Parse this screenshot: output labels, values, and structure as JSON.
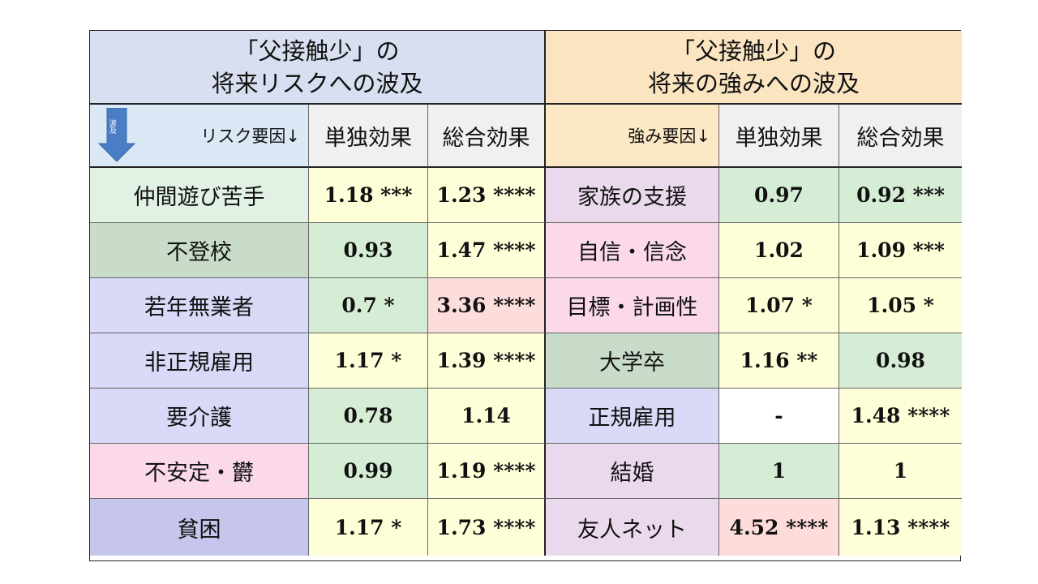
{
  "headers": {
    "left": {
      "line1": "「父接触少」の",
      "line2": "将来リスクへの波及"
    },
    "right": {
      "line1": "「父接触少」の",
      "line2": "将来の強みへの波及"
    }
  },
  "columns": {
    "arrow_label": "波及",
    "risk_factor": "リスク要因↓",
    "single_effect_left": "単独効果",
    "total_effect_left": "総合効果",
    "strength_factor": "強み要因↓",
    "single_effect_right": "単独効果",
    "total_effect_right": "総合効果"
  },
  "colors": {
    "header_left": "#d8dff0",
    "header_right": "#fbe5c1",
    "arrow": "#4a7ec4",
    "white": "#ffffff",
    "yellow": "#fefed8",
    "green": "#d4edd4",
    "pink": "#fddcdc",
    "mint": "#e1f1e3",
    "sage": "#c9dbc9",
    "lavender": "#d9d9f8",
    "violet": "#c6c6ec",
    "rose": "#fbd9ea",
    "mauve": "#ead9ec"
  },
  "rows": [
    {
      "risk": {
        "label": "仲間遊び苦手",
        "color": "mint"
      },
      "risk_single": {
        "value": "1.18 ***",
        "color": "yellow"
      },
      "risk_total": {
        "value": "1.23 ****",
        "color": "yellow"
      },
      "strength": {
        "label": "家族の支援",
        "color": "mauve"
      },
      "strength_single": {
        "value": "0.97",
        "color": "green"
      },
      "strength_total": {
        "value": "0.92 ***",
        "color": "green"
      }
    },
    {
      "risk": {
        "label": "不登校",
        "color": "sage"
      },
      "risk_single": {
        "value": "0.93",
        "color": "green"
      },
      "risk_total": {
        "value": "1.47 ****",
        "color": "yellow"
      },
      "strength": {
        "label": "自信・信念",
        "color": "rose"
      },
      "strength_single": {
        "value": "1.02",
        "color": "yellow"
      },
      "strength_total": {
        "value": "1.09 ***",
        "color": "yellow"
      }
    },
    {
      "risk": {
        "label": "若年無業者",
        "color": "lavender"
      },
      "risk_single": {
        "value": "0.7 *",
        "color": "green"
      },
      "risk_total": {
        "value": "3.36 ****",
        "color": "pink"
      },
      "strength": {
        "label": "目標・計画性",
        "color": "rose"
      },
      "strength_single": {
        "value": "1.07 *",
        "color": "yellow"
      },
      "strength_total": {
        "value": "1.05 *",
        "color": "yellow"
      }
    },
    {
      "risk": {
        "label": "非正規雇用",
        "color": "lavender"
      },
      "risk_single": {
        "value": "1.17 *",
        "color": "yellow"
      },
      "risk_total": {
        "value": "1.39 ****",
        "color": "yellow"
      },
      "strength": {
        "label": "大学卒",
        "color": "sage"
      },
      "strength_single": {
        "value": "1.16 **",
        "color": "yellow"
      },
      "strength_total": {
        "value": "0.98",
        "color": "green"
      }
    },
    {
      "risk": {
        "label": "要介護",
        "color": "lavender"
      },
      "risk_single": {
        "value": "0.78",
        "color": "green"
      },
      "risk_total": {
        "value": "1.14",
        "color": "yellow"
      },
      "strength": {
        "label": "正規雇用",
        "color": "lavender"
      },
      "strength_single": {
        "value": "-",
        "color": "white"
      },
      "strength_total": {
        "value": "1.48 ****",
        "color": "yellow"
      }
    },
    {
      "risk": {
        "label": "不安定・欝",
        "color": "rose"
      },
      "risk_single": {
        "value": "0.99",
        "color": "green"
      },
      "risk_total": {
        "value": "1.19 ****",
        "color": "yellow"
      },
      "strength": {
        "label": "結婚",
        "color": "mauve"
      },
      "strength_single": {
        "value": "1",
        "color": "green"
      },
      "strength_total": {
        "value": "1",
        "color": "yellow"
      }
    },
    {
      "risk": {
        "label": "貧困",
        "color": "violet"
      },
      "risk_single": {
        "value": "1.17 *",
        "color": "yellow"
      },
      "risk_total": {
        "value": "1.73 ****",
        "color": "yellow"
      },
      "strength": {
        "label": "友人ネット",
        "color": "mauve"
      },
      "strength_single": {
        "value": "4.52 ****",
        "color": "pink"
      },
      "strength_total": {
        "value": "1.13 ****",
        "color": "yellow"
      }
    }
  ]
}
